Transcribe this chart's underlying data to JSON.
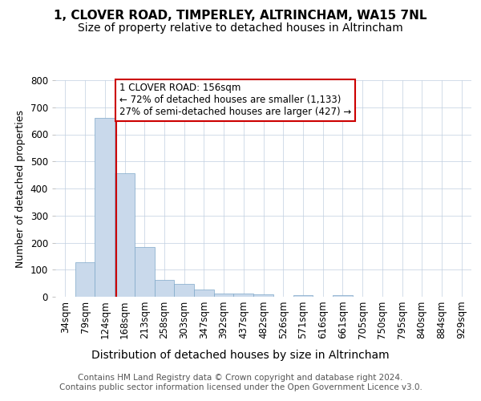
{
  "title": "1, CLOVER ROAD, TIMPERLEY, ALTRINCHAM, WA15 7NL",
  "subtitle": "Size of property relative to detached houses in Altrincham",
  "xlabel": "Distribution of detached houses by size in Altrincham",
  "ylabel": "Number of detached properties",
  "bins": [
    "34sqm",
    "79sqm",
    "124sqm",
    "168sqm",
    "213sqm",
    "258sqm",
    "303sqm",
    "347sqm",
    "392sqm",
    "437sqm",
    "482sqm",
    "526sqm",
    "571sqm",
    "616sqm",
    "661sqm",
    "705sqm",
    "750sqm",
    "795sqm",
    "840sqm",
    "884sqm",
    "929sqm"
  ],
  "values": [
    0,
    128,
    660,
    455,
    183,
    62,
    47,
    28,
    11,
    13,
    8,
    0,
    7,
    0,
    7,
    0,
    0,
    0,
    0,
    0,
    0
  ],
  "bar_color": "#c9d9eb",
  "bar_edge_color": "#7fa8c9",
  "bar_width": 1.0,
  "vline_x": 2.57,
  "vline_color": "#cc0000",
  "annotation_text": "1 CLOVER ROAD: 156sqm\n← 72% of detached houses are smaller (1,133)\n27% of semi-detached houses are larger (427) →",
  "annotation_box_color": "#ffffff",
  "annotation_box_edge": "#cc0000",
  "ylim": [
    0,
    800
  ],
  "yticks": [
    0,
    100,
    200,
    300,
    400,
    500,
    600,
    700,
    800
  ],
  "footer": "Contains HM Land Registry data © Crown copyright and database right 2024.\nContains public sector information licensed under the Open Government Licence v3.0.",
  "bg_color": "#ffffff",
  "grid_color": "#c0cfe0",
  "title_fontsize": 11,
  "subtitle_fontsize": 10,
  "xlabel_fontsize": 10,
  "ylabel_fontsize": 9,
  "tick_fontsize": 8.5,
  "footer_fontsize": 7.5,
  "annot_fontsize": 8.5
}
